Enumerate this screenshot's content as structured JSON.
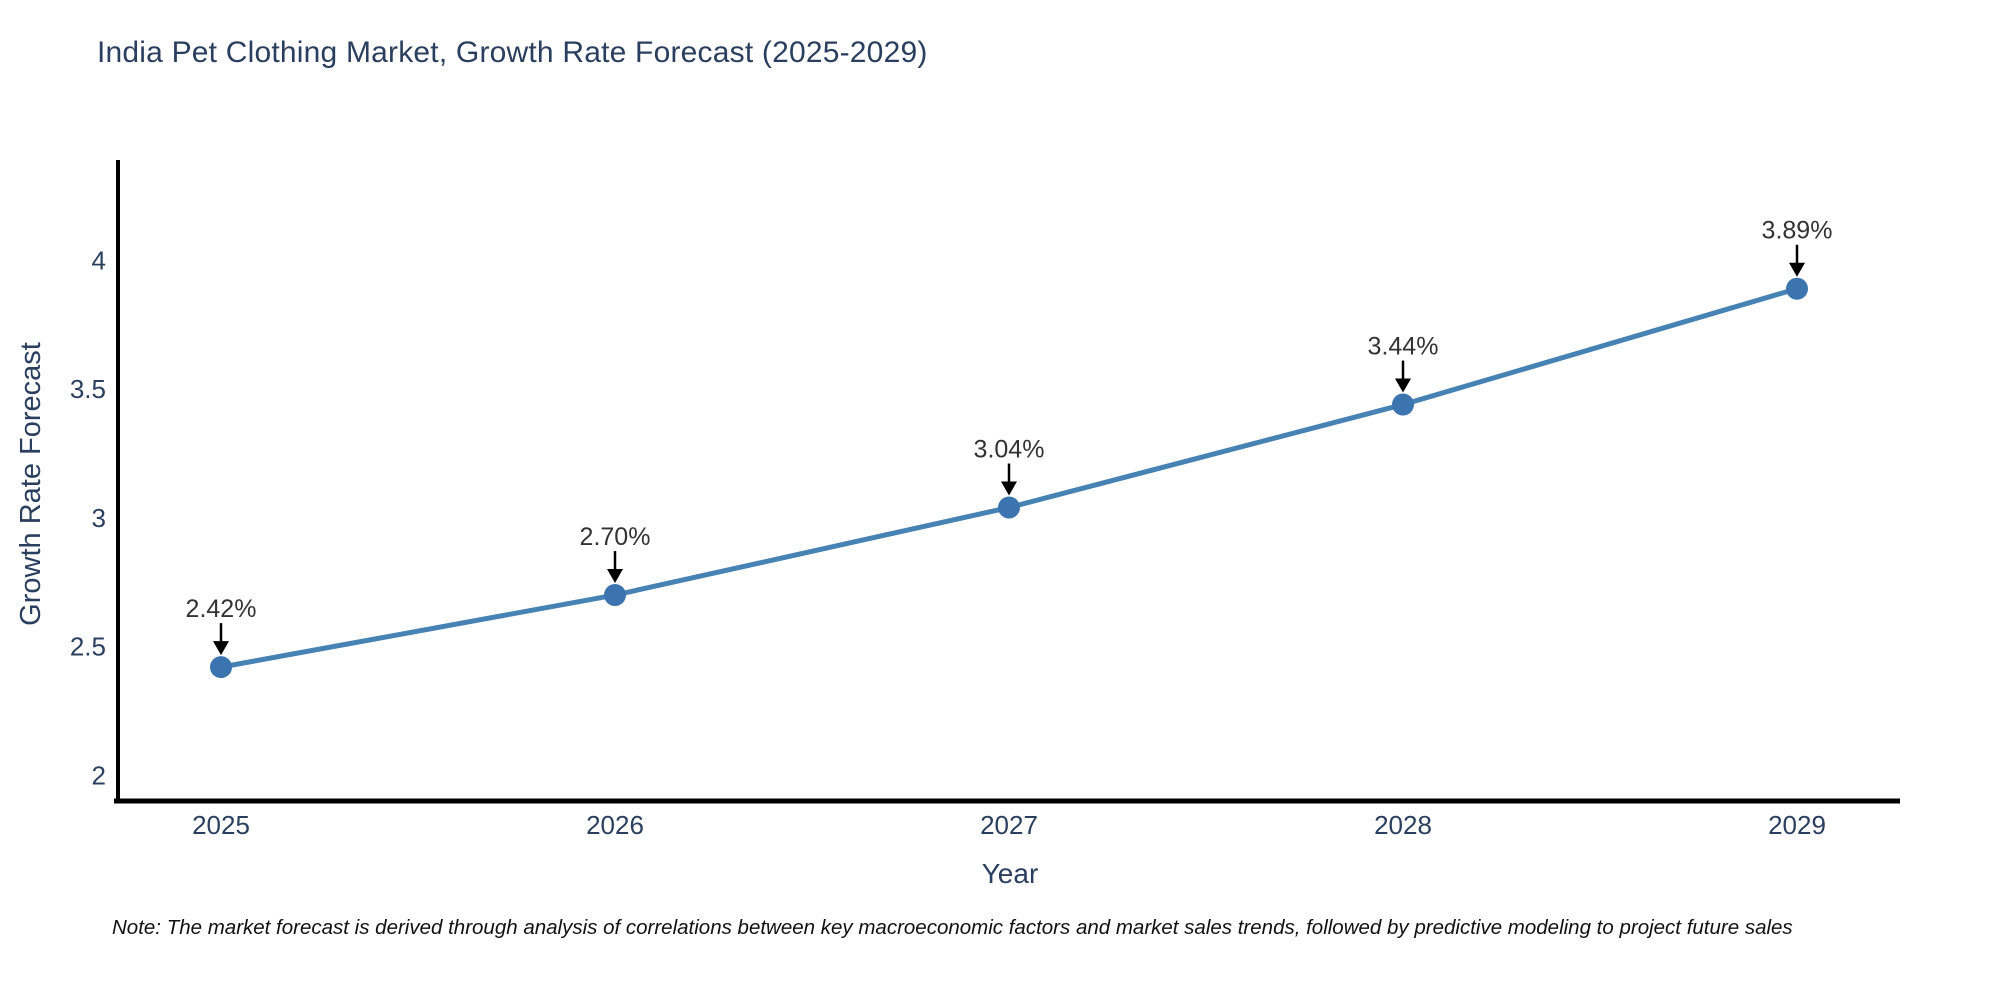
{
  "page": {
    "note": "Note: The market forecast is derived through analysis of correlations between key macroeconomic factors and market sales trends, followed by predictive modeling to project future sales"
  },
  "chart_data": {
    "type": "line",
    "title": "India Pet Clothing Market, Growth Rate Forecast (2025-2029)",
    "xlabel": "Year",
    "ylabel": "Growth Rate Forecast",
    "x": [
      2025,
      2026,
      2027,
      2028,
      2029
    ],
    "series": [
      {
        "name": "Growth Rate Forecast",
        "values": [
          2.42,
          2.7,
          3.04,
          3.44,
          3.89
        ],
        "point_labels": [
          "2.42%",
          "2.70%",
          "3.04%",
          "3.44%",
          "3.89%"
        ]
      }
    ],
    "xtick_labels": [
      "2025",
      "2026",
      "2027",
      "2028",
      "2029"
    ],
    "ytick_values": [
      2,
      2.5,
      3,
      3.5,
      4
    ],
    "ytick_labels": [
      "2",
      "2.5",
      "3",
      "3.5",
      "4"
    ],
    "ylim": [
      1.9,
      4.39
    ],
    "grid": false,
    "legend": "none",
    "annotations_have_arrows": true,
    "colors": {
      "line": "#4682B4",
      "marker": "#3C74B0",
      "axis_text": "#2a3f5f",
      "annotation_text": "#333333",
      "arrow": "#000000",
      "spine": "#000000",
      "background": "#ffffff"
    }
  }
}
